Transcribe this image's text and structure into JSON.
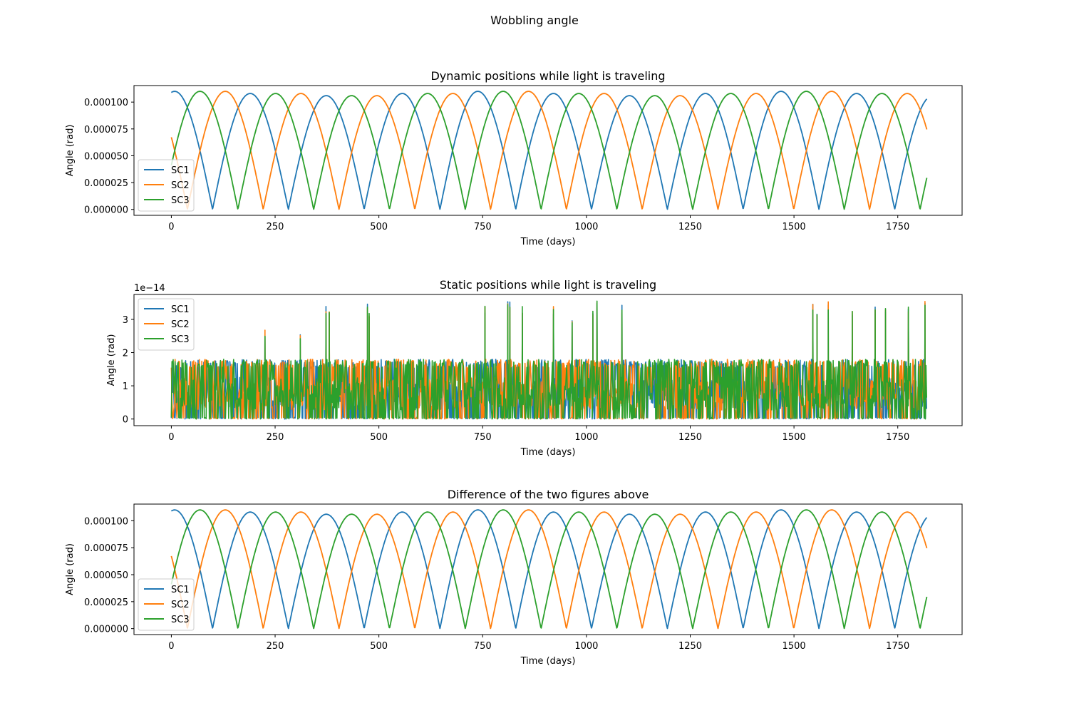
{
  "figure": {
    "suptitle": "Wobbling angle"
  },
  "colors": {
    "SC1": "#1f77b4",
    "SC2": "#ff7f0e",
    "SC3": "#2ca02c",
    "axes": "#000000",
    "background": "#ffffff"
  },
  "chart_data": [
    {
      "type": "line",
      "title": "Dynamic positions while light is traveling",
      "xlabel": "Time (days)",
      "ylabel": "Angle (rad)",
      "xlim": [
        -90,
        1905
      ],
      "ylim": [
        -5.5e-06,
        0.0001154
      ],
      "x_ticks": [
        0,
        250,
        500,
        750,
        1000,
        1250,
        1500,
        1750
      ],
      "x_tick_labels": [
        "0",
        "250",
        "500",
        "750",
        "1000",
        "1250",
        "1500",
        "1750"
      ],
      "y_ticks": [
        0,
        2.5e-05,
        5e-05,
        7.5e-05,
        0.0001
      ],
      "y_tick_labels": [
        "0.000000",
        "0.000025",
        "0.000050",
        "0.000075",
        "0.000100"
      ],
      "grid": false,
      "legend": "lower left",
      "model": "abs_cosine",
      "x_range": [
        0,
        1820
      ],
      "period_days": 182.6,
      "amplitude_min": 0.000106,
      "amplitude_max": 0.00011,
      "series": [
        {
          "name": "SC1",
          "color": "#1f77b4",
          "phase_days": 8
        },
        {
          "name": "SC2",
          "color": "#ff7f0e",
          "phase_days": 130
        },
        {
          "name": "SC3",
          "color": "#2ca02c",
          "phase_days": 69
        }
      ]
    },
    {
      "type": "line",
      "title": "Static positions while light is traveling",
      "xlabel": "Time (days)",
      "ylabel": "Angle (rad)",
      "offset_label": "1e−14",
      "xlim": [
        -90,
        1905
      ],
      "ylim": [
        -0.2,
        3.75
      ],
      "x_ticks": [
        0,
        250,
        500,
        750,
        1000,
        1250,
        1500,
        1750
      ],
      "x_tick_labels": [
        "0",
        "250",
        "500",
        "750",
        "1000",
        "1250",
        "1500",
        "1750"
      ],
      "y_ticks": [
        0,
        1,
        2,
        3
      ],
      "y_tick_labels": [
        "0",
        "1",
        "2",
        "3"
      ],
      "grid": false,
      "legend": "upper left",
      "model": "noise",
      "x_range": [
        0,
        1820
      ],
      "value_range": [
        0,
        3.6
      ],
      "typical_band": [
        0,
        1.8
      ],
      "spikes": [
        {
          "x": 225,
          "y": 2.7
        },
        {
          "x": 310,
          "y": 2.6
        },
        {
          "x": 372,
          "y": 3.45
        },
        {
          "x": 380,
          "y": 3.4
        },
        {
          "x": 472,
          "y": 3.5
        },
        {
          "x": 476,
          "y": 3.3
        },
        {
          "x": 755,
          "y": 3.45
        },
        {
          "x": 810,
          "y": 3.6
        },
        {
          "x": 815,
          "y": 3.55
        },
        {
          "x": 845,
          "y": 3.4
        },
        {
          "x": 920,
          "y": 3.4
        },
        {
          "x": 965,
          "y": 3.05
        },
        {
          "x": 1015,
          "y": 3.4
        },
        {
          "x": 1025,
          "y": 3.55
        },
        {
          "x": 1085,
          "y": 3.45
        },
        {
          "x": 1545,
          "y": 3.5
        },
        {
          "x": 1555,
          "y": 3.3
        },
        {
          "x": 1582,
          "y": 3.55
        },
        {
          "x": 1640,
          "y": 3.3
        },
        {
          "x": 1695,
          "y": 3.5
        },
        {
          "x": 1720,
          "y": 3.45
        },
        {
          "x": 1775,
          "y": 3.45
        },
        {
          "x": 1815,
          "y": 3.55
        }
      ],
      "series": [
        {
          "name": "SC1",
          "color": "#1f77b4",
          "seed": 11
        },
        {
          "name": "SC2",
          "color": "#ff7f0e",
          "seed": 23
        },
        {
          "name": "SC3",
          "color": "#2ca02c",
          "seed": 37
        }
      ]
    },
    {
      "type": "line",
      "title": "Difference of the two figures above",
      "xlabel": "Time (days)",
      "ylabel": "Angle (rad)",
      "xlim": [
        -90,
        1905
      ],
      "ylim": [
        -5.5e-06,
        0.0001154
      ],
      "x_ticks": [
        0,
        250,
        500,
        750,
        1000,
        1250,
        1500,
        1750
      ],
      "x_tick_labels": [
        "0",
        "250",
        "500",
        "750",
        "1000",
        "1250",
        "1500",
        "1750"
      ],
      "y_ticks": [
        0,
        2.5e-05,
        5e-05,
        7.5e-05,
        0.0001
      ],
      "y_tick_labels": [
        "0.000000",
        "0.000025",
        "0.000050",
        "0.000075",
        "0.000100"
      ],
      "grid": false,
      "legend": "lower left",
      "model": "abs_cosine",
      "x_range": [
        0,
        1820
      ],
      "period_days": 182.6,
      "amplitude_min": 0.000106,
      "amplitude_max": 0.00011,
      "series": [
        {
          "name": "SC1",
          "color": "#1f77b4",
          "phase_days": 8
        },
        {
          "name": "SC2",
          "color": "#ff7f0e",
          "phase_days": 130
        },
        {
          "name": "SC3",
          "color": "#2ca02c",
          "phase_days": 69
        }
      ]
    }
  ]
}
